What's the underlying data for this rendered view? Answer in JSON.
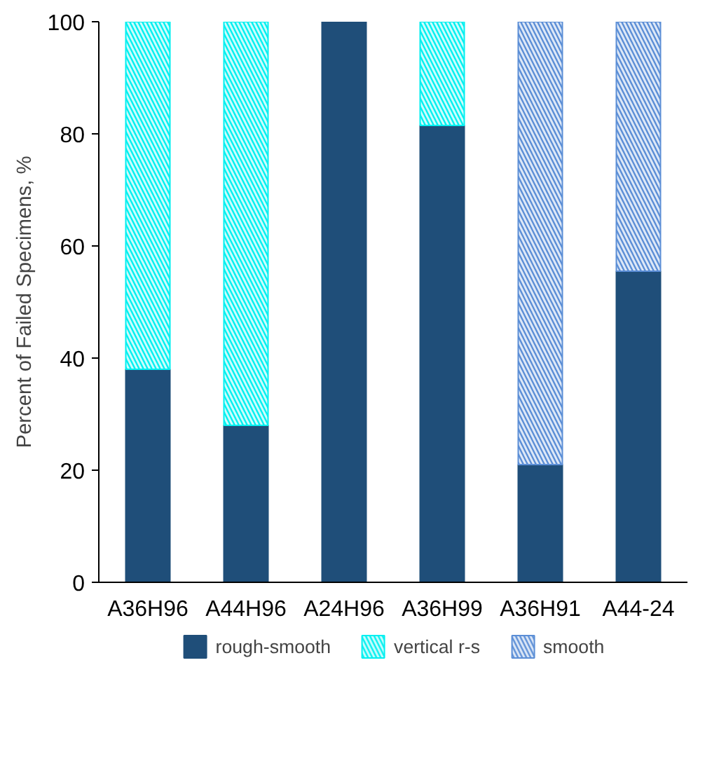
{
  "chart_data": {
    "type": "bar",
    "stacked": true,
    "ylabel": "Percent of Failed Specimens, %",
    "categories": [
      "A36H96",
      "A44H96",
      "A24H96",
      "A36H99",
      "A36H91",
      "A44-24"
    ],
    "series": [
      {
        "name": "rough-smooth",
        "color": "#1f4e79",
        "values": [
          38,
          28,
          100,
          81.5,
          21,
          55.5
        ]
      },
      {
        "name": "vertical r-s",
        "color": "#00f0f0",
        "values": [
          62,
          72,
          null,
          18.5,
          null,
          null
        ]
      },
      {
        "name": "smooth",
        "color": "#5b8ed6",
        "values": [
          null,
          null,
          null,
          null,
          79,
          44.5
        ]
      }
    ],
    "ylim": [
      0,
      100
    ],
    "yticks": [
      0,
      20,
      40,
      60,
      80,
      100
    ],
    "grid": false,
    "legend": "bottom"
  }
}
